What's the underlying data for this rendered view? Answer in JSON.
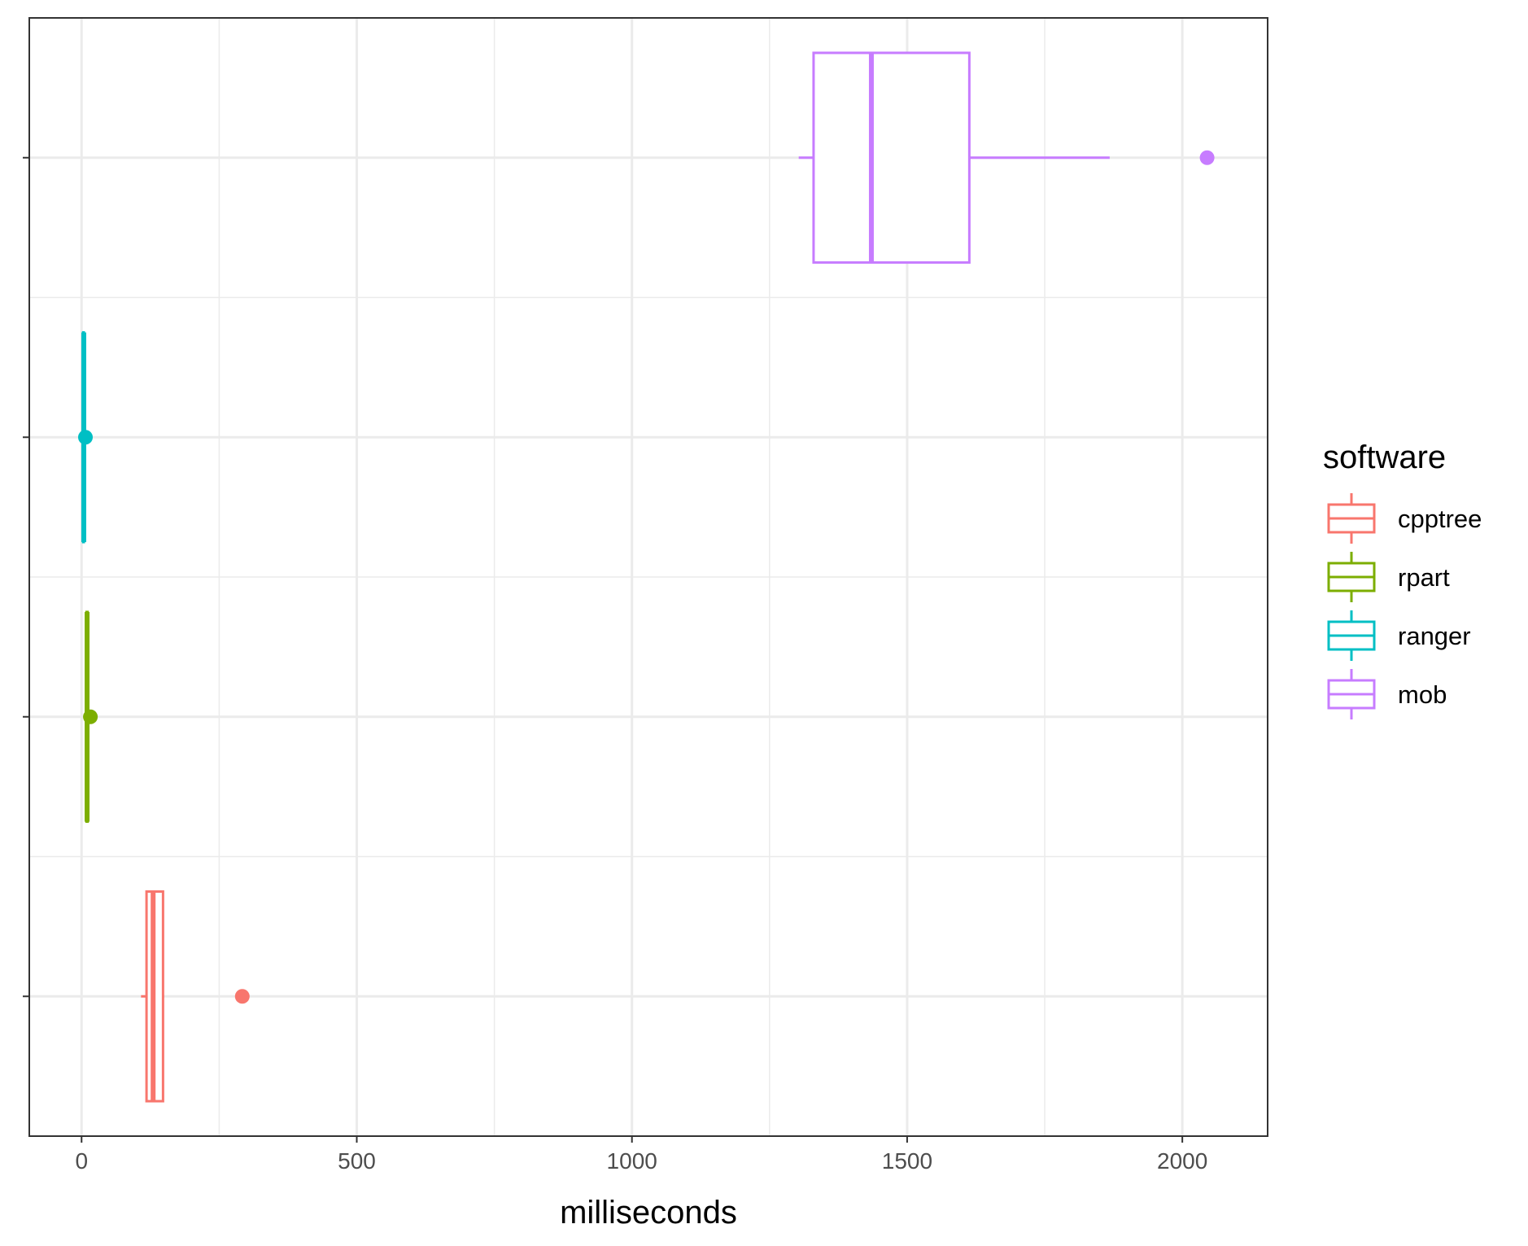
{
  "chart_data": {
    "type": "boxplot",
    "orientation": "horizontal",
    "xlabel": "milliseconds",
    "ylabel": "",
    "xlim": [
      -95,
      2155
    ],
    "xticks": [
      0,
      500,
      1000,
      1500,
      2000
    ],
    "xtick_labels": [
      "0",
      "500",
      "1000",
      "1500",
      "2000"
    ],
    "grid": true,
    "legend": {
      "title": "software",
      "placement": "right",
      "entries": [
        "cpptree",
        "rpart",
        "ranger",
        "mob"
      ]
    },
    "series": [
      {
        "name": "cpptree",
        "color": "#F8766D",
        "whisker_low": 108,
        "q1": 118,
        "median": 130,
        "q3": 148,
        "whisker_high": 150,
        "outliers": [
          292
        ]
      },
      {
        "name": "rpart",
        "color": "#7CAE00",
        "whisker_low": 9,
        "q1": 9,
        "median": 10,
        "q3": 11,
        "whisker_high": 12,
        "outliers": [
          16
        ]
      },
      {
        "name": "ranger",
        "color": "#00BFC4",
        "whisker_low": 3,
        "q1": 3,
        "median": 4,
        "q3": 4,
        "whisker_high": 5,
        "outliers": [
          7
        ]
      },
      {
        "name": "mob",
        "color": "#C77CFF",
        "whisker_low": 1303,
        "q1": 1330,
        "median": 1435,
        "q3": 1613,
        "whisker_high": 1868,
        "outliers": [
          2045
        ]
      }
    ]
  }
}
